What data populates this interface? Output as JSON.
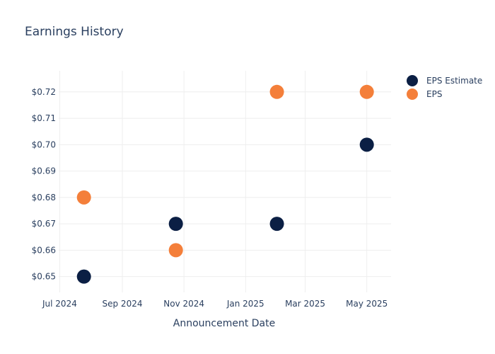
{
  "chart_data": {
    "type": "scatter",
    "title": "Earnings History",
    "xlabel": "Announcement Date",
    "ylabel": "",
    "x_ticks": [
      {
        "date": "2024-07-01",
        "label": "Jul 2024"
      },
      {
        "date": "2024-09-01",
        "label": "Sep 2024"
      },
      {
        "date": "2024-11-01",
        "label": "Nov 2024"
      },
      {
        "date": "2025-01-01",
        "label": "Jan 2025"
      },
      {
        "date": "2025-03-01",
        "label": "Mar 2025"
      },
      {
        "date": "2025-05-01",
        "label": "May 2025"
      }
    ],
    "y_ticks": [
      {
        "value": 0.65,
        "label": "$0.65"
      },
      {
        "value": 0.66,
        "label": "$0.66"
      },
      {
        "value": 0.67,
        "label": "$0.67"
      },
      {
        "value": 0.68,
        "label": "$0.68"
      },
      {
        "value": 0.69,
        "label": "$0.69"
      },
      {
        "value": 0.7,
        "label": "$0.70"
      },
      {
        "value": 0.71,
        "label": "$0.71"
      },
      {
        "value": 0.72,
        "label": "$0.72"
      }
    ],
    "xlim": [
      "2024-06-30",
      "2025-05-25"
    ],
    "ylim": [
      0.644,
      0.728
    ],
    "grid": true,
    "legend_position": "top-right",
    "series": [
      {
        "name": "EPS Estimate",
        "color": "#0b1f44",
        "points": [
          {
            "x": "2024-07-25",
            "y": 0.65
          },
          {
            "x": "2024-10-24",
            "y": 0.67
          },
          {
            "x": "2025-02-01",
            "y": 0.67
          },
          {
            "x": "2025-05-01",
            "y": 0.7
          }
        ]
      },
      {
        "name": "EPS",
        "color": "#f47f3a",
        "points": [
          {
            "x": "2024-07-25",
            "y": 0.68
          },
          {
            "x": "2024-10-24",
            "y": 0.66
          },
          {
            "x": "2025-02-01",
            "y": 0.72
          },
          {
            "x": "2025-05-01",
            "y": 0.72
          }
        ]
      }
    ]
  }
}
